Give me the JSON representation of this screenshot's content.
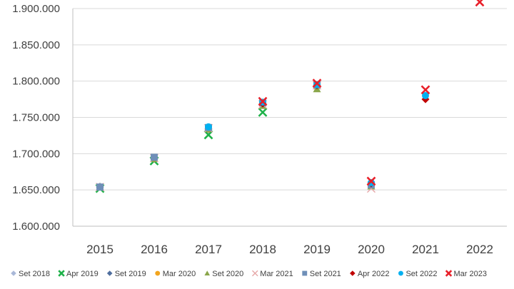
{
  "chart_data": {
    "type": "scatter",
    "categories": [
      "2015",
      "2016",
      "2017",
      "2018",
      "2019",
      "2020",
      "2021",
      "2022"
    ],
    "ylim": [
      1600000,
      1900000
    ],
    "y_ticks": [
      "1.600.000",
      "1.650.000",
      "1.700.000",
      "1.750.000",
      "1.800.000",
      "1.850.000",
      "1.900.000"
    ],
    "y_tick_values": [
      1600000,
      1650000,
      1700000,
      1750000,
      1800000,
      1850000,
      1900000
    ],
    "grid": true,
    "legend_position": "bottom",
    "series": [
      {
        "name": "Set 2018",
        "marker": "diamond",
        "color": "#a9b8d8",
        "values": [
          1655000,
          1693000,
          1733000,
          1768000,
          null,
          null,
          null,
          null
        ]
      },
      {
        "name": "Apr 2019",
        "marker": "x-bold",
        "color": "#1fb24a",
        "values": [
          1652000,
          1690000,
          1726000,
          1757000,
          null,
          null,
          null,
          null
        ]
      },
      {
        "name": "Set 2019",
        "marker": "diamond",
        "color": "#4f6e9e",
        "values": [
          1654000,
          1693000,
          1734000,
          1768000,
          1791000,
          null,
          null,
          null
        ]
      },
      {
        "name": "Mar 2020",
        "marker": "circle",
        "color": "#f2a51e",
        "values": [
          1654000,
          1693000,
          1734000,
          1768000,
          1793000,
          null,
          null,
          null
        ]
      },
      {
        "name": "Set 2020",
        "marker": "triangle",
        "color": "#8aa64a",
        "values": [
          1654000,
          1693000,
          1734000,
          1766000,
          1789000,
          1655000,
          null,
          null
        ]
      },
      {
        "name": "Mar 2021",
        "marker": "x-thin",
        "color": "#e6a8a8",
        "values": [
          1654000,
          1694000,
          1735000,
          1768000,
          1794000,
          1652000,
          null,
          null
        ]
      },
      {
        "name": "Set 2021",
        "marker": "square",
        "color": "#6f8fb8",
        "values": [
          1654000,
          1695000,
          1736000,
          1770000,
          1795000,
          1657000,
          null,
          null
        ]
      },
      {
        "name": "Apr 2022",
        "marker": "diamond",
        "color": "#c00000",
        "values": [
          null,
          null,
          null,
          1769000,
          1794000,
          1659000,
          1775000,
          null
        ]
      },
      {
        "name": "Set 2022",
        "marker": "circle",
        "color": "#00b0f0",
        "values": [
          null,
          null,
          1737000,
          1771000,
          1795000,
          1660000,
          1780000,
          null
        ]
      },
      {
        "name": "Mar 2023",
        "marker": "x-bold",
        "color": "#e8202a",
        "values": [
          null,
          null,
          null,
          1772000,
          1797000,
          1662000,
          1788000,
          1909000
        ]
      }
    ]
  }
}
